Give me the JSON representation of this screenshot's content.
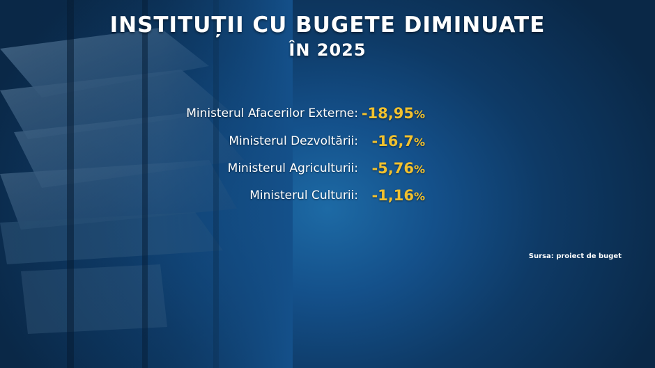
{
  "chart_data": {
    "type": "table",
    "title": "INSTITUȚII CU BUGETE DIMINUATE",
    "subtitle": "ÎN 2025",
    "unit": "%",
    "rows": [
      {
        "label": "Ministerul Afacerilor Externe:",
        "value": -18.95,
        "value_text": "-18,95"
      },
      {
        "label": "Ministerul Dezvoltării:",
        "value": -16.7,
        "value_text": "-16,7"
      },
      {
        "label": "Ministerul Agriculturii:",
        "value": -5.76,
        "value_text": "-5,76"
      },
      {
        "label": "Ministerul Culturii:",
        "value": -1.16,
        "value_text": "-1,16"
      }
    ],
    "source": "Sursa: proiect de buget"
  },
  "colors": {
    "value_color": "#f2c12e",
    "label_color": "#ffffff",
    "background": "#14508a"
  }
}
